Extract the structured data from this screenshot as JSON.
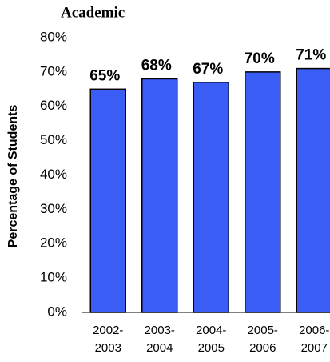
{
  "chart_data": {
    "type": "bar",
    "title": "Academic",
    "ylabel": "Percentage of Students",
    "categories": [
      "2002-2003",
      "2003-2004",
      "2004-2005",
      "2005-2006",
      "2006-2007"
    ],
    "values": [
      65,
      68,
      67,
      70,
      71
    ],
    "value_labels": [
      "65%",
      "68%",
      "67%",
      "70%",
      "71%"
    ],
    "color": "#3a5ef5",
    "ylim": [
      0,
      80
    ],
    "yticks": [
      {
        "value": 0,
        "label": "0%"
      },
      {
        "value": 10,
        "label": "10%"
      },
      {
        "value": 20,
        "label": "20%"
      },
      {
        "value": 30,
        "label": "30%"
      },
      {
        "value": 40,
        "label": "40%"
      },
      {
        "value": 50,
        "label": "50%"
      },
      {
        "value": 60,
        "label": "60%"
      },
      {
        "value": 70,
        "label": "70%"
      },
      {
        "value": 80,
        "label": "80%"
      }
    ],
    "grid": false
  }
}
